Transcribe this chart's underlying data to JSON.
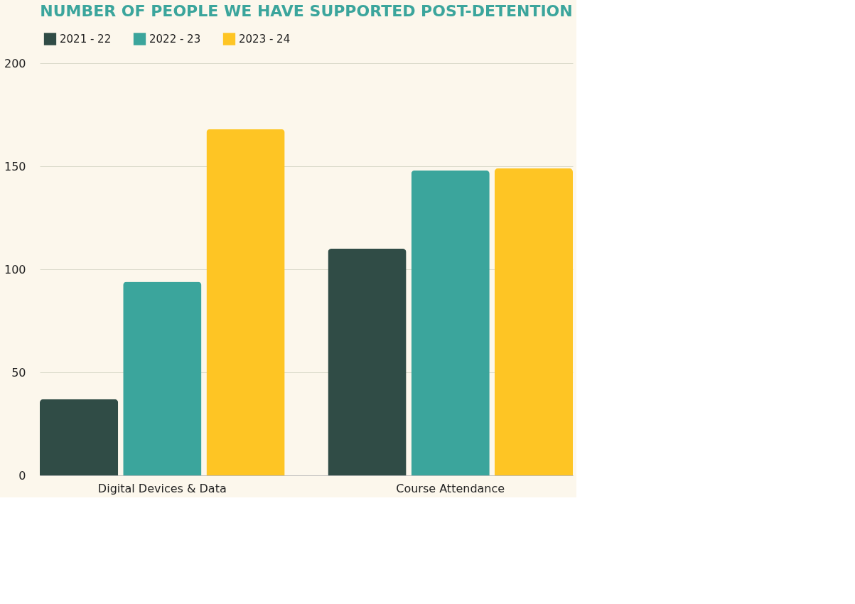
{
  "chart_data": {
    "type": "bar",
    "title": "NUMBER OF PEOPLE WE HAVE SUPPORTED POST-DETENTION",
    "categories": [
      "Digital Devices & Data",
      "Course Attendance"
    ],
    "series": [
      {
        "name": "2021 - 22",
        "color": "#304c46",
        "values": [
          37,
          110
        ]
      },
      {
        "name": "2022 - 23",
        "color": "#3ba59c",
        "values": [
          94,
          148
        ]
      },
      {
        "name": "2023 - 24",
        "color": "#fec524",
        "values": [
          168,
          149
        ]
      }
    ],
    "ylim": [
      0,
      200
    ],
    "yticks": [
      0,
      50,
      100,
      150,
      200
    ],
    "grid": "y",
    "legend": "top"
  }
}
